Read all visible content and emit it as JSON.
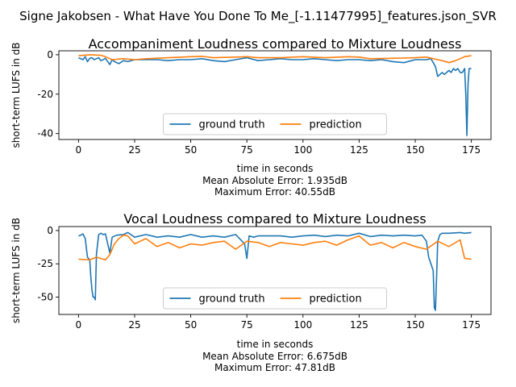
{
  "figure": {
    "suptitle": "Signe Jakobsen - What Have You Done To Me_[-1.11477995]_features.json_SVR"
  },
  "chart_data": [
    {
      "type": "line",
      "title": "Accompaniment Loudness compared to Mixture Loudness",
      "xlabel": "time in seconds",
      "ylabel": "short-term LUFS in dB",
      "xlim": [
        -8.75,
        183.75
      ],
      "ylim": [
        -43,
        2
      ],
      "xticks": [
        0,
        25,
        50,
        75,
        100,
        125,
        150,
        175
      ],
      "yticks": [
        0,
        -20,
        -40
      ],
      "grid": false,
      "legend": {
        "placement": "lower center",
        "ncol": 2
      },
      "notes": [
        "Mean Absolute Error: 1.935dB",
        "Maximum Error: 40.55dB"
      ],
      "series": [
        {
          "name": "ground truth",
          "color": "#1f77b4",
          "x": [
            0,
            2,
            3,
            4,
            5,
            6,
            7,
            8,
            9,
            10,
            11,
            12,
            13,
            14,
            15,
            16,
            18,
            20,
            22,
            25,
            30,
            35,
            40,
            45,
            50,
            55,
            60,
            65,
            70,
            75,
            80,
            85,
            90,
            95,
            100,
            105,
            110,
            115,
            120,
            125,
            130,
            135,
            140,
            145,
            150,
            155,
            157,
            158,
            159,
            160,
            161,
            162,
            163,
            164,
            165,
            166,
            167,
            168,
            169,
            170,
            171,
            172,
            172.5,
            173,
            173.5,
            174,
            174.5,
            175
          ],
          "y": [
            -1.5,
            -2.5,
            -1,
            -3.5,
            -1.8,
            -1.5,
            -2.5,
            -2,
            -1.5,
            -3,
            -2.5,
            -1.8,
            -3.5,
            -5,
            -2.5,
            -3.5,
            -4.5,
            -3,
            -3.5,
            -2.5,
            -2.5,
            -2.5,
            -3,
            -2.5,
            -2.5,
            -2,
            -3,
            -3.5,
            -2.5,
            -1.5,
            -3,
            -2.5,
            -2,
            -2.5,
            -2.5,
            -2,
            -2.5,
            -3,
            -2.5,
            -2.5,
            -3,
            -2.5,
            -3.5,
            -4,
            -2.5,
            -2.5,
            -2,
            -4,
            -6,
            -11,
            -10,
            -9,
            -10,
            -9,
            -8,
            -9,
            -7,
            -8,
            -7,
            -9,
            -9,
            -7,
            -20,
            -41,
            -15,
            -7,
            -7,
            -7
          ]
        },
        {
          "name": "prediction",
          "color": "#ff7f0e",
          "x": [
            0,
            5,
            10,
            12,
            15,
            20,
            25,
            30,
            40,
            50,
            55,
            60,
            70,
            75,
            80,
            90,
            100,
            110,
            120,
            125,
            130,
            140,
            150,
            155,
            158,
            160,
            162,
            165,
            168,
            170,
            172,
            175
          ],
          "y": [
            -0.5,
            0,
            -0.3,
            -1,
            -2.5,
            -2,
            -2.5,
            -2,
            -1.5,
            -1,
            -0.8,
            -1.5,
            -1.2,
            -1,
            -1.5,
            -1.5,
            -1,
            -1.5,
            -1,
            -1.2,
            -2,
            -1.8,
            -1.5,
            -1.2,
            -2,
            -2.5,
            -3,
            -4,
            -3,
            -2,
            -1,
            -0.5
          ]
        }
      ]
    },
    {
      "type": "line",
      "title": "Vocal Loudness compared to Mixture Loudness",
      "xlabel": "time in seconds",
      "ylabel": "short-term LUFS in dB",
      "xlim": [
        -8.75,
        183.75
      ],
      "ylim": [
        -63,
        3
      ],
      "xticks": [
        0,
        25,
        50,
        75,
        100,
        125,
        150,
        175
      ],
      "yticks": [
        0,
        -25,
        -50
      ],
      "grid": false,
      "legend": {
        "placement": "lower center",
        "ncol": 2
      },
      "notes": [
        "Mean Absolute Error: 6.675dB",
        "Maximum Error: 47.81dB"
      ],
      "series": [
        {
          "name": "ground truth",
          "color": "#1f77b4",
          "x": [
            0,
            1,
            2,
            3,
            4,
            5,
            5.5,
            6,
            6.5,
            7,
            7.5,
            8,
            9,
            10,
            11,
            12,
            13,
            14,
            15,
            17,
            20,
            22,
            25,
            30,
            35,
            40,
            45,
            50,
            55,
            60,
            65,
            70,
            74,
            75,
            76,
            78,
            80,
            85,
            90,
            95,
            100,
            105,
            110,
            115,
            120,
            125,
            130,
            135,
            140,
            145,
            150,
            153,
            155,
            156,
            157,
            158,
            158.5,
            159,
            159.5,
            160,
            161,
            162,
            165,
            170,
            172,
            175
          ],
          "y": [
            -4,
            -3.5,
            -2.5,
            -6,
            -20,
            -22,
            -35,
            -45,
            -50,
            -50,
            -52,
            -18,
            -3,
            -2,
            -3,
            -2.5,
            -10,
            -17,
            -5,
            -3.5,
            -3,
            -1.5,
            -5,
            -3,
            -5,
            -4,
            -5,
            -3,
            -5,
            -4,
            -5,
            -3,
            -10,
            -21,
            -4,
            -5,
            -4,
            -4,
            -4,
            -5,
            -4,
            -3.5,
            -4.5,
            -3.5,
            -4,
            -2,
            -4.5,
            -3.5,
            -4,
            -3.5,
            -4,
            -3.5,
            -8,
            -20,
            -25,
            -30,
            -58,
            -60,
            -35,
            -8,
            -3,
            -2,
            -2,
            -1.5,
            -2,
            -1.5
          ]
        },
        {
          "name": "prediction",
          "color": "#ff7f0e",
          "x": [
            0,
            5,
            8,
            10,
            12,
            14,
            16,
            18,
            20,
            22,
            25,
            30,
            35,
            40,
            45,
            50,
            55,
            60,
            65,
            70,
            75,
            80,
            85,
            90,
            95,
            100,
            105,
            110,
            115,
            120,
            125,
            130,
            135,
            140,
            145,
            150,
            155,
            160,
            165,
            170,
            172,
            175
          ],
          "y": [
            -21.5,
            -22,
            -20,
            -21,
            -22,
            -18,
            -10,
            -6,
            -3.5,
            -4,
            -10,
            -6,
            -12,
            -9,
            -13,
            -10,
            -11,
            -9,
            -8,
            -14,
            -8,
            -9,
            -12,
            -9,
            -10,
            -11,
            -9,
            -8,
            -11,
            -7,
            -4,
            -11,
            -9,
            -13,
            -9,
            -12,
            -14,
            -8,
            -12,
            -7,
            -21,
            -21.5
          ]
        }
      ]
    }
  ]
}
